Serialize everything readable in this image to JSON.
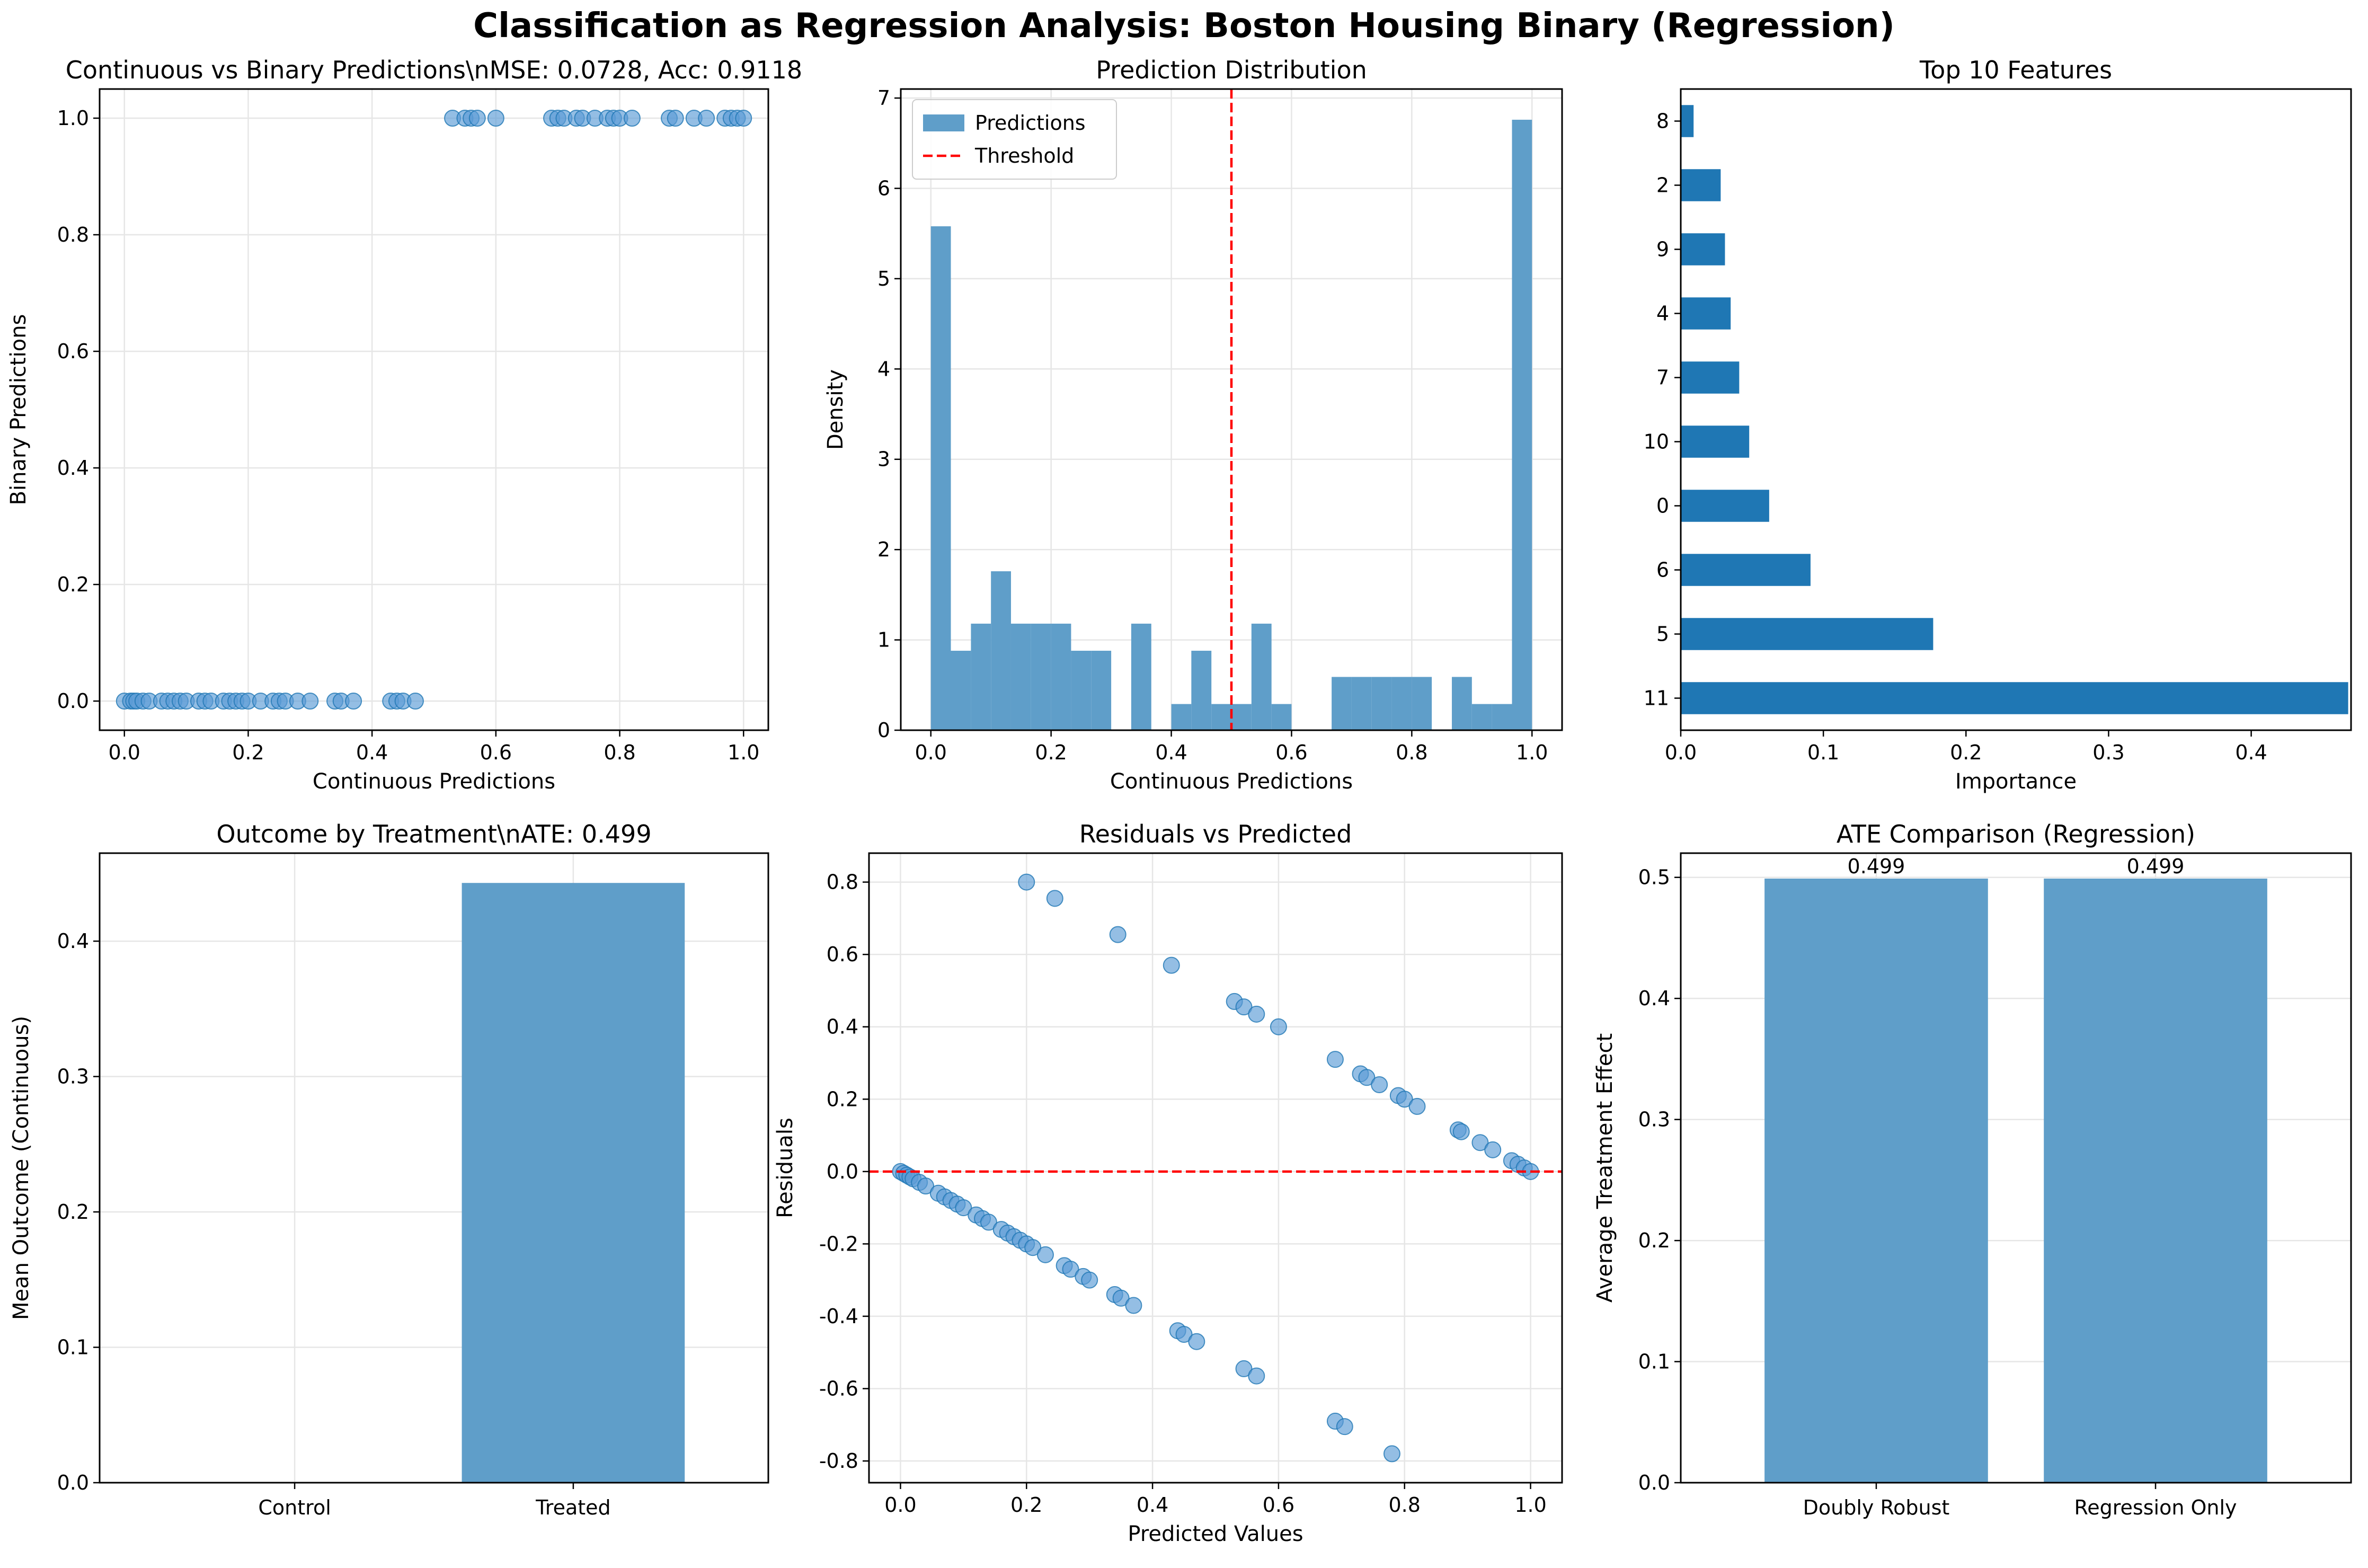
{
  "figure": {
    "suptitle": "Classification as Regression Analysis: Boston Housing Binary (Regression)"
  },
  "colors": {
    "bar_blue": "#5f9ec9",
    "bar_dark": "#1f77b4",
    "point_blue": "#5b9bd5",
    "threshold_red": "#ff0000",
    "grid": "#e6e6e6"
  },
  "chart_data": [
    {
      "id": "p1",
      "type": "scatter",
      "title": "Continuous vs Binary Predictions\\nMSE: 0.0728, Acc: 0.9118",
      "xlabel": "Continuous Predictions",
      "ylabel": "Binary Predictions",
      "xlim": [
        -0.04,
        1.04
      ],
      "ylim": [
        -0.05,
        1.05
      ],
      "xticks": [
        0.0,
        0.2,
        0.4,
        0.6,
        0.8,
        1.0
      ],
      "yticks": [
        0.0,
        0.2,
        0.4,
        0.6,
        0.8,
        1.0
      ],
      "grid": true,
      "series": [
        {
          "x": [
            0.0,
            0.01,
            0.015,
            0.02,
            0.03,
            0.04,
            0.06,
            0.07,
            0.08,
            0.09,
            0.1,
            0.12,
            0.13,
            0.14,
            0.16,
            0.17,
            0.18,
            0.19,
            0.2,
            0.22,
            0.24,
            0.25,
            0.26,
            0.28,
            0.3,
            0.34,
            0.35,
            0.37,
            0.43,
            0.44,
            0.45,
            0.47,
            0.53,
            0.55,
            0.56,
            0.57,
            0.6,
            0.69,
            0.7,
            0.71,
            0.73,
            0.74,
            0.76,
            0.78,
            0.79,
            0.8,
            0.82,
            0.88,
            0.89,
            0.92,
            0.94,
            0.97,
            0.98,
            0.99,
            1.0
          ],
          "y": [
            0,
            0,
            0,
            0,
            0,
            0,
            0,
            0,
            0,
            0,
            0,
            0,
            0,
            0,
            0,
            0,
            0,
            0,
            0,
            0,
            0,
            0,
            0,
            0,
            0,
            0,
            0,
            0,
            0,
            0,
            0,
            0,
            1,
            1,
            1,
            1,
            1,
            1,
            1,
            1,
            1,
            1,
            1,
            1,
            1,
            1,
            1,
            1,
            1,
            1,
            1,
            1,
            1,
            1,
            1
          ]
        }
      ]
    },
    {
      "id": "p2",
      "type": "bar",
      "title": "Prediction Distribution",
      "xlabel": "Continuous Predictions",
      "ylabel": "Density",
      "xlim": [
        -0.05,
        1.05
      ],
      "ylim": [
        0,
        7.1
      ],
      "xticks": [
        0.0,
        0.2,
        0.4,
        0.6,
        0.8,
        1.0
      ],
      "yticks": [
        0,
        1,
        2,
        3,
        4,
        5,
        6,
        7
      ],
      "bin_edges": [
        0.0,
        0.0333,
        0.0667,
        0.1,
        0.1333,
        0.1667,
        0.2,
        0.2333,
        0.2667,
        0.3,
        0.3333,
        0.3667,
        0.4,
        0.4333,
        0.4667,
        0.5,
        0.5333,
        0.5667,
        0.6,
        0.6333,
        0.6667,
        0.7,
        0.7333,
        0.7667,
        0.8,
        0.8333,
        0.8667,
        0.9,
        0.9333,
        0.9667,
        1.0
      ],
      "values": [
        5.58,
        0.88,
        1.18,
        1.76,
        1.18,
        1.18,
        1.18,
        0.88,
        0.88,
        0,
        1.18,
        0,
        0.29,
        0.88,
        0.29,
        0.29,
        1.18,
        0.29,
        0,
        0,
        0.59,
        0.59,
        0.59,
        0.59,
        0.59,
        0,
        0.59,
        0.29,
        0.29,
        6.76
      ],
      "threshold": 0.5,
      "legend": {
        "position": "top-left",
        "entries": [
          "Predictions",
          "Threshold"
        ]
      },
      "grid": true
    },
    {
      "id": "p3",
      "type": "bar",
      "orientation": "horizontal",
      "title": "Top 10 Features",
      "xlabel": "Importance",
      "ylabel": "",
      "xlim": [
        0,
        0.47
      ],
      "xticks": [
        0.0,
        0.1,
        0.2,
        0.3,
        0.4
      ],
      "categories": [
        "11",
        "5",
        "6",
        "0",
        "10",
        "7",
        "4",
        "9",
        "2",
        "8"
      ],
      "values": [
        0.468,
        0.177,
        0.091,
        0.062,
        0.048,
        0.041,
        0.035,
        0.031,
        0.028,
        0.009
      ],
      "grid": false
    },
    {
      "id": "p4",
      "type": "bar",
      "title": "Outcome by Treatment\\nATE: 0.499",
      "xlabel": "",
      "ylabel": "Mean Outcome (Continuous)",
      "ylim": [
        0,
        0.465
      ],
      "yticks": [
        0.0,
        0.1,
        0.2,
        0.3,
        0.4
      ],
      "categories": [
        "Control",
        "Treated"
      ],
      "values": [
        0.0,
        0.443
      ],
      "grid": true
    },
    {
      "id": "p5",
      "type": "scatter",
      "title": "Residuals vs Predicted",
      "xlabel": "Predicted Values",
      "ylabel": "Residuals",
      "xlim": [
        -0.05,
        1.05
      ],
      "ylim": [
        -0.86,
        0.88
      ],
      "xticks": [
        0.0,
        0.2,
        0.4,
        0.6,
        0.8,
        1.0
      ],
      "yticks": [
        -0.8,
        -0.6,
        -0.4,
        -0.2,
        0.0,
        0.2,
        0.4,
        0.6,
        0.8
      ],
      "zero_line": 0,
      "grid": true,
      "series": [
        {
          "x": [
            0.0,
            0.005,
            0.01,
            0.015,
            0.02,
            0.03,
            0.04,
            0.06,
            0.07,
            0.08,
            0.09,
            0.1,
            0.12,
            0.13,
            0.14,
            0.16,
            0.17,
            0.18,
            0.19,
            0.2,
            0.21,
            0.23,
            0.26,
            0.27,
            0.29,
            0.3,
            0.34,
            0.35,
            0.37,
            0.44,
            0.45,
            0.47,
            0.545,
            0.565,
            0.69,
            0.705,
            0.78,
            0.2,
            0.245,
            0.345,
            0.43,
            0.53,
            0.545,
            0.565,
            0.6,
            0.69,
            0.73,
            0.74,
            0.76,
            0.79,
            0.8,
            0.82,
            0.885,
            0.89,
            0.92,
            0.94,
            0.97,
            0.98,
            0.99,
            1.0
          ],
          "y": [
            0.0,
            -0.005,
            -0.01,
            -0.015,
            -0.02,
            -0.03,
            -0.04,
            -0.06,
            -0.07,
            -0.08,
            -0.09,
            -0.1,
            -0.12,
            -0.13,
            -0.14,
            -0.16,
            -0.17,
            -0.18,
            -0.19,
            -0.2,
            -0.21,
            -0.23,
            -0.26,
            -0.27,
            -0.29,
            -0.3,
            -0.34,
            -0.35,
            -0.37,
            -0.44,
            -0.45,
            -0.47,
            -0.545,
            -0.565,
            -0.69,
            -0.705,
            -0.78,
            0.8,
            0.755,
            0.655,
            0.57,
            0.47,
            0.455,
            0.435,
            0.4,
            0.31,
            0.27,
            0.26,
            0.24,
            0.21,
            0.2,
            0.18,
            0.115,
            0.11,
            0.08,
            0.06,
            0.03,
            0.02,
            0.01,
            0.0
          ]
        }
      ]
    },
    {
      "id": "p6",
      "type": "bar",
      "title": "ATE Comparison (Regression)",
      "xlabel": "",
      "ylabel": "Average Treatment Effect",
      "ylim": [
        0,
        0.52
      ],
      "yticks": [
        0.0,
        0.1,
        0.2,
        0.3,
        0.4,
        0.5
      ],
      "categories": [
        "Doubly Robust",
        "Regression Only"
      ],
      "values": [
        0.499,
        0.499
      ],
      "data_labels": [
        "0.499",
        "0.499"
      ],
      "grid": true
    }
  ]
}
